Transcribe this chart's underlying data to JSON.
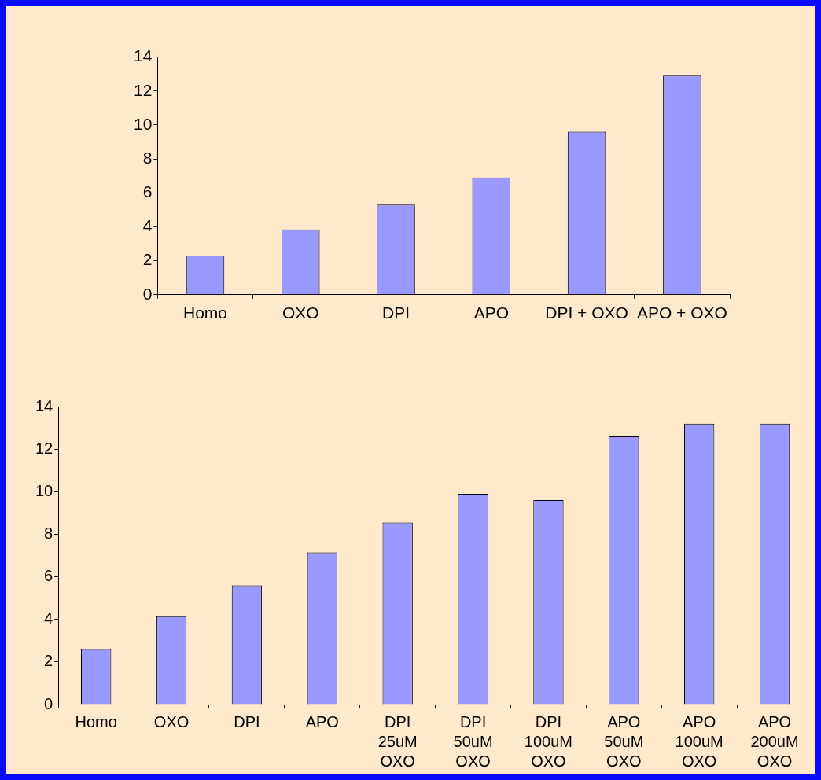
{
  "chart_data": [
    {
      "type": "bar",
      "categories": [
        "Homo",
        "OXO",
        "DPI",
        "APO",
        "DPI + OXO",
        "APO + OXO"
      ],
      "values": [
        2.3,
        3.85,
        5.3,
        6.9,
        9.6,
        12.9
      ],
      "color": "#9999ff",
      "ylim": [
        0,
        14
      ],
      "yticks": [
        0,
        2,
        4,
        6,
        8,
        10,
        12,
        14
      ],
      "grid": false,
      "legend": false
    },
    {
      "type": "bar",
      "categories": [
        "Homo",
        "OXO",
        "DPI",
        "APO",
        "DPI 25uM OXO",
        "DPI 50uM OXO",
        "DPI 100uM OXO",
        "APO 50uM OXO",
        "APO 100uM OXO",
        "APO 200uM OXO"
      ],
      "values": [
        2.6,
        4.15,
        5.6,
        7.15,
        8.55,
        9.9,
        9.6,
        12.6,
        13.2,
        13.2
      ],
      "color": "#9999ff",
      "ylim": [
        0,
        14
      ],
      "yticks": [
        0,
        2,
        4,
        6,
        8,
        10,
        12,
        14
      ],
      "grid": false,
      "legend": false
    }
  ]
}
